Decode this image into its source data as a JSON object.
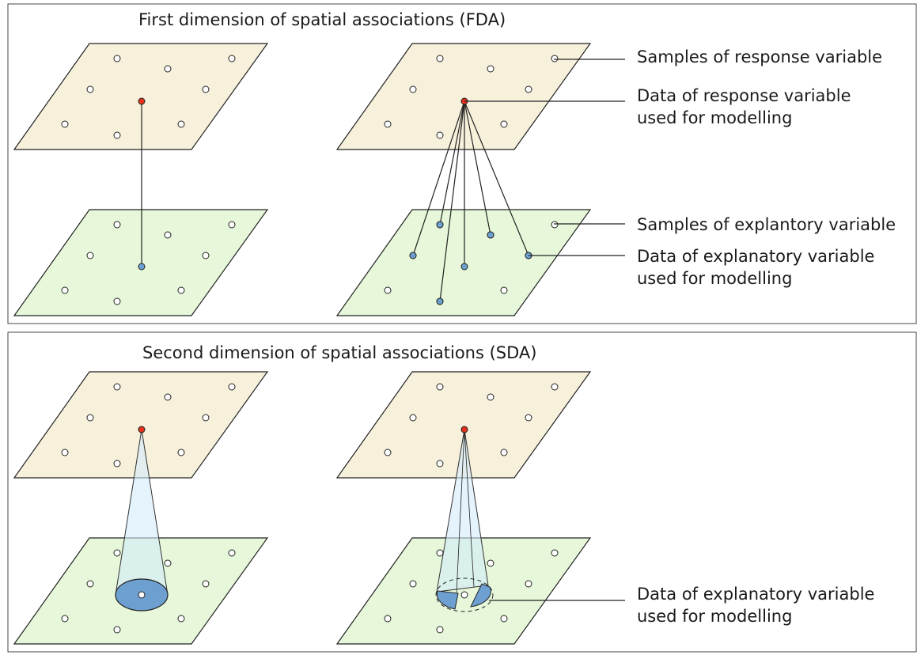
{
  "panels": [
    {
      "title": "First dimension of spatial associations (FDA)",
      "labels": [
        {
          "lines": [
            "Samples of response variable"
          ]
        },
        {
          "lines": [
            "Data of response variable",
            "used for modelling"
          ]
        },
        {
          "lines": [
            "Samples of explantory variable"
          ]
        },
        {
          "lines": [
            "Data of explanatory variable",
            "used for modelling"
          ]
        }
      ]
    },
    {
      "title": "Second dimension of spatial associations (SDA)",
      "labels": [
        {
          "lines": [
            "Data of explanatory variable",
            "used for modelling"
          ]
        }
      ]
    }
  ]
}
